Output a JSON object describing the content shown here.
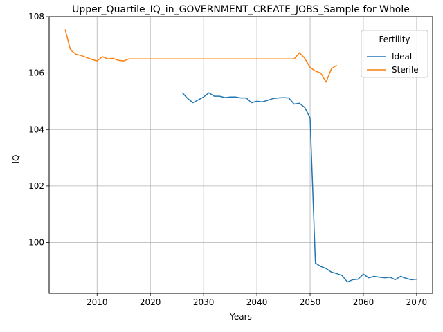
{
  "chart_data": {
    "type": "line",
    "title": "Upper_Quartile_IQ_in_GOVERNMENT_CREATE_JOBS_Sample for Whole",
    "xlabel": "Years",
    "ylabel": "IQ",
    "xlim": [
      2001,
      2073
    ],
    "ylim": [
      98.2,
      108.0
    ],
    "xticks": [
      2010,
      2020,
      2030,
      2040,
      2050,
      2060,
      2070
    ],
    "yticks": [
      100,
      102,
      104,
      106,
      108
    ],
    "grid": true,
    "legend": {
      "title": "Fertility",
      "placement": "top-right"
    },
    "series": [
      {
        "name": "Ideal",
        "color": "#1f77b4",
        "points": [
          [
            2026,
            105.3
          ],
          [
            2027,
            105.1
          ],
          [
            2028,
            104.95
          ],
          [
            2029,
            105.05
          ],
          [
            2030,
            105.15
          ],
          [
            2031,
            105.3
          ],
          [
            2032,
            105.18
          ],
          [
            2033,
            105.18
          ],
          [
            2034,
            105.13
          ],
          [
            2035,
            105.15
          ],
          [
            2036,
            105.15
          ],
          [
            2037,
            105.12
          ],
          [
            2038,
            105.12
          ],
          [
            2039,
            104.95
          ],
          [
            2040,
            105.0
          ],
          [
            2041,
            104.98
          ],
          [
            2042,
            105.03
          ],
          [
            2043,
            105.1
          ],
          [
            2044,
            105.12
          ],
          [
            2045,
            105.13
          ],
          [
            2046,
            105.12
          ],
          [
            2047,
            104.9
          ],
          [
            2048,
            104.93
          ],
          [
            2049,
            104.78
          ],
          [
            2050,
            104.42
          ],
          [
            2051,
            99.27
          ],
          [
            2052,
            99.15
          ],
          [
            2053,
            99.08
          ],
          [
            2054,
            98.95
          ],
          [
            2055,
            98.9
          ],
          [
            2056,
            98.83
          ],
          [
            2057,
            98.6
          ],
          [
            2058,
            98.68
          ],
          [
            2059,
            98.7
          ],
          [
            2060,
            98.88
          ],
          [
            2061,
            98.75
          ],
          [
            2062,
            98.8
          ],
          [
            2063,
            98.77
          ],
          [
            2064,
            98.75
          ],
          [
            2065,
            98.77
          ],
          [
            2066,
            98.68
          ],
          [
            2067,
            98.8
          ],
          [
            2068,
            98.73
          ],
          [
            2069,
            98.68
          ],
          [
            2070,
            98.7
          ]
        ]
      },
      {
        "name": "Sterile",
        "color": "#ff7f0e",
        "points": [
          [
            2004,
            107.55
          ],
          [
            2005,
            106.82
          ],
          [
            2006,
            106.67
          ],
          [
            2007,
            106.62
          ],
          [
            2008,
            106.55
          ],
          [
            2009,
            106.48
          ],
          [
            2010,
            106.43
          ],
          [
            2011,
            106.58
          ],
          [
            2012,
            106.5
          ],
          [
            2013,
            106.52
          ],
          [
            2014,
            106.45
          ],
          [
            2015,
            106.43
          ],
          [
            2016,
            106.5
          ],
          [
            2017,
            106.5
          ],
          [
            2018,
            106.5
          ],
          [
            2019,
            106.5
          ],
          [
            2020,
            106.5
          ],
          [
            2025,
            106.5
          ],
          [
            2030,
            106.5
          ],
          [
            2035,
            106.5
          ],
          [
            2040,
            106.5
          ],
          [
            2045,
            106.5
          ],
          [
            2047,
            106.5
          ],
          [
            2048,
            106.72
          ],
          [
            2049,
            106.52
          ],
          [
            2050,
            106.2
          ],
          [
            2051,
            106.07
          ],
          [
            2052,
            106.0
          ],
          [
            2053,
            105.68
          ],
          [
            2054,
            106.15
          ],
          [
            2055,
            106.28
          ]
        ]
      }
    ]
  }
}
